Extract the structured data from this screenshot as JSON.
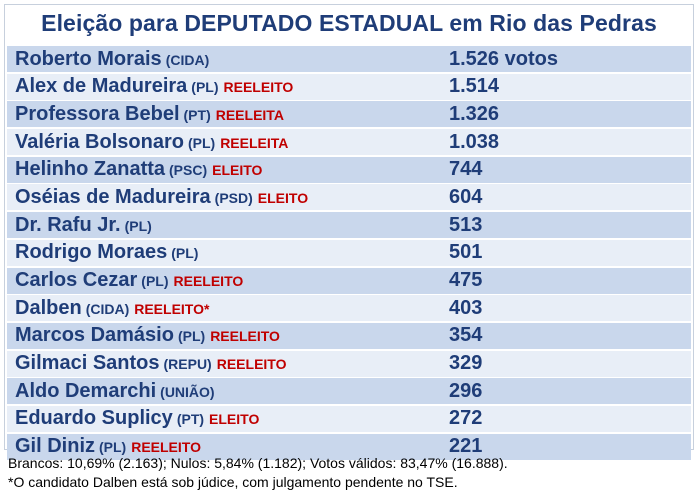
{
  "table": {
    "title": "Eleição para DEPUTADO ESTADUAL em Rio das Pedras",
    "rows": [
      {
        "name": "Roberto Morais",
        "party": "(CIDA)",
        "status": "",
        "votes": "1.526 votos"
      },
      {
        "name": "Alex de Madureira",
        "party": "(PL)",
        "status": "REELEITO",
        "votes": "1.514"
      },
      {
        "name": "Professora Bebel",
        "party": "(PT)",
        "status": "REELEITA",
        "votes": "1.326"
      },
      {
        "name": "Valéria Bolsonaro",
        "party": "(PL)",
        "status": "REELEITA",
        "votes": "1.038"
      },
      {
        "name": "Helinho Zanatta",
        "party": "(PSC)",
        "status": "ELEITO",
        "votes": "744"
      },
      {
        "name": "Oséias de Madureira",
        "party": "(PSD)",
        "status": "ELEITO",
        "votes": "604"
      },
      {
        "name": "Dr. Rafu Jr.",
        "party": "(PL)",
        "status": "",
        "votes": "513"
      },
      {
        "name": "Rodrigo Moraes",
        "party": "(PL)",
        "status": "",
        "votes": "501"
      },
      {
        "name": "Carlos Cezar",
        "party": "(PL)",
        "status": "REELEITO",
        "votes": "475"
      },
      {
        "name": "Dalben",
        "party": "(CIDA)",
        "status": "REELEITO*",
        "votes": "403"
      },
      {
        "name": "Marcos Damásio",
        "party": "(PL)",
        "status": "REELEITO",
        "votes": "354"
      },
      {
        "name": "Gilmaci Santos",
        "party": "(REPU)",
        "status": "REELEITO",
        "votes": "329"
      },
      {
        "name": "Aldo Demarchi",
        "party": "(UNIÃO)",
        "status": "",
        "votes": "296"
      },
      {
        "name": "Eduardo Suplicy",
        "party": "(PT)",
        "status": "ELEITO",
        "votes": "272"
      },
      {
        "name": "Gil Diniz",
        "party": "(PL)",
        "status": "REELEITO",
        "votes": "221"
      }
    ]
  },
  "footer": {
    "line1": "Brancos: 10,69% (2.163); Nulos: 5,84% (1.182); Votos válidos: 83,47% (16.888).",
    "line2": "*O candidato Dalben está sob júdice, com julgamento pendente no TSE."
  },
  "colors": {
    "title_text": "#1f3d78",
    "row_dark": "#c9d7ec",
    "row_light": "#e8eef7",
    "status_red": "#c00000"
  }
}
